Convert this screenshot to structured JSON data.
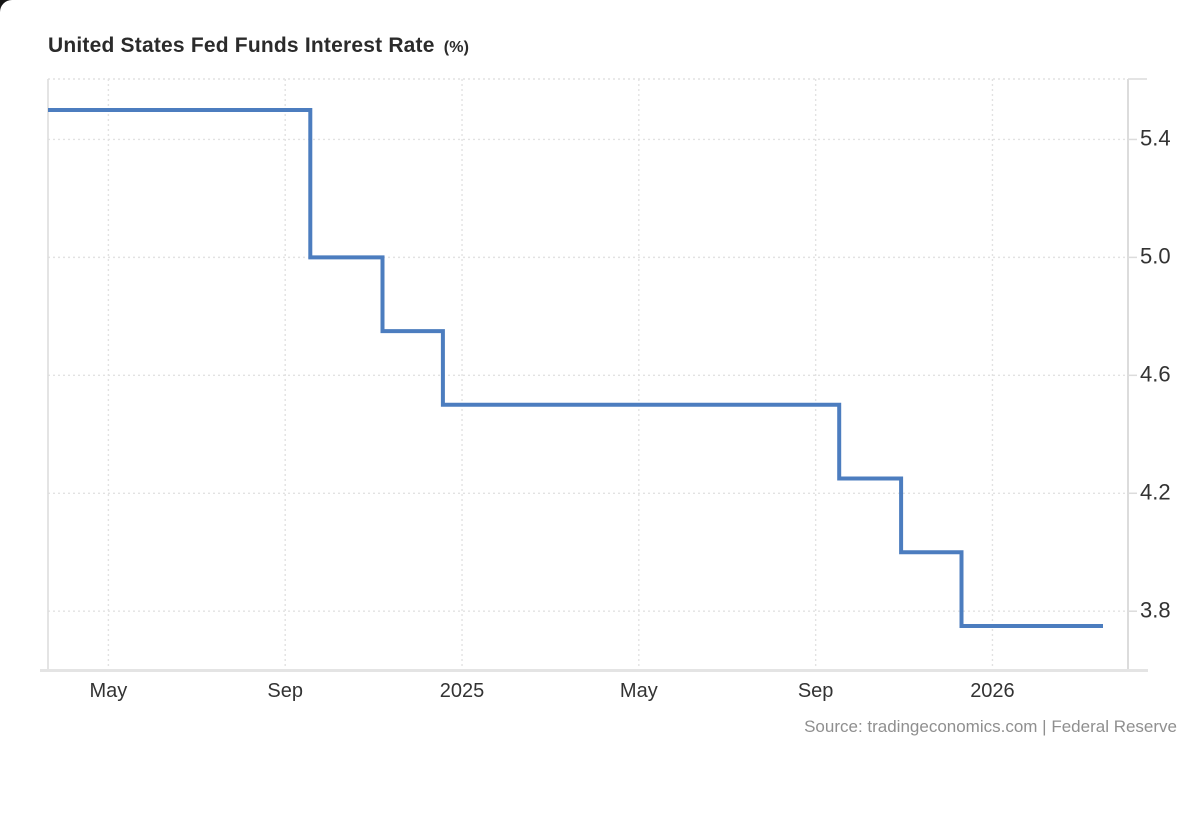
{
  "title": {
    "text": "United States Fed Funds Interest Rate",
    "unit": "(%)"
  },
  "source": "Source: tradingeconomics.com | Federal Reserve",
  "colors": {
    "line": "#4c7dbf",
    "grid": "#e2e2e2",
    "border": "#dcdcdc",
    "border_bottom": "#e4e4e4",
    "title_text": "#2b2b2b",
    "axis_text": "#333333",
    "source_text": "#8f8f8f",
    "background": "#ffffff"
  },
  "chart_data": {
    "type": "line",
    "subtype": "step-after",
    "title": "United States Fed Funds Interest Rate (%)",
    "xlabel": "",
    "ylabel": "",
    "legend": "none",
    "grid": "dotted",
    "xlim": [
      "2024-03-20",
      "2026-04-03"
    ],
    "ylim": [
      3.604,
      5.605
    ],
    "y_ticks": [
      {
        "value": 5.4,
        "label": "5.4"
      },
      {
        "value": 5.0,
        "label": "5.0"
      },
      {
        "value": 4.6,
        "label": "4.6"
      },
      {
        "value": 4.2,
        "label": "4.2"
      },
      {
        "value": 3.8,
        "label": "3.8"
      }
    ],
    "x_ticks": [
      {
        "date": "2024-05-01",
        "label": "May"
      },
      {
        "date": "2024-09-01",
        "label": "Sep"
      },
      {
        "date": "2025-01-01",
        "label": "2025"
      },
      {
        "date": "2025-05-01",
        "label": "May"
      },
      {
        "date": "2025-09-01",
        "label": "Sep"
      },
      {
        "date": "2026-01-01",
        "label": "2026"
      }
    ],
    "series": [
      {
        "name": "Fed Funds Interest Rate",
        "points": [
          {
            "date": "2024-03-20",
            "value": 5.5
          },
          {
            "date": "2024-09-18",
            "value": 5.0
          },
          {
            "date": "2024-11-07",
            "value": 4.75
          },
          {
            "date": "2024-12-18",
            "value": 4.5
          },
          {
            "date": "2025-09-17",
            "value": 4.25
          },
          {
            "date": "2025-10-29",
            "value": 4.0
          },
          {
            "date": "2025-12-10",
            "value": 3.75
          },
          {
            "date": "2026-03-16",
            "value": 3.75
          }
        ]
      }
    ]
  }
}
